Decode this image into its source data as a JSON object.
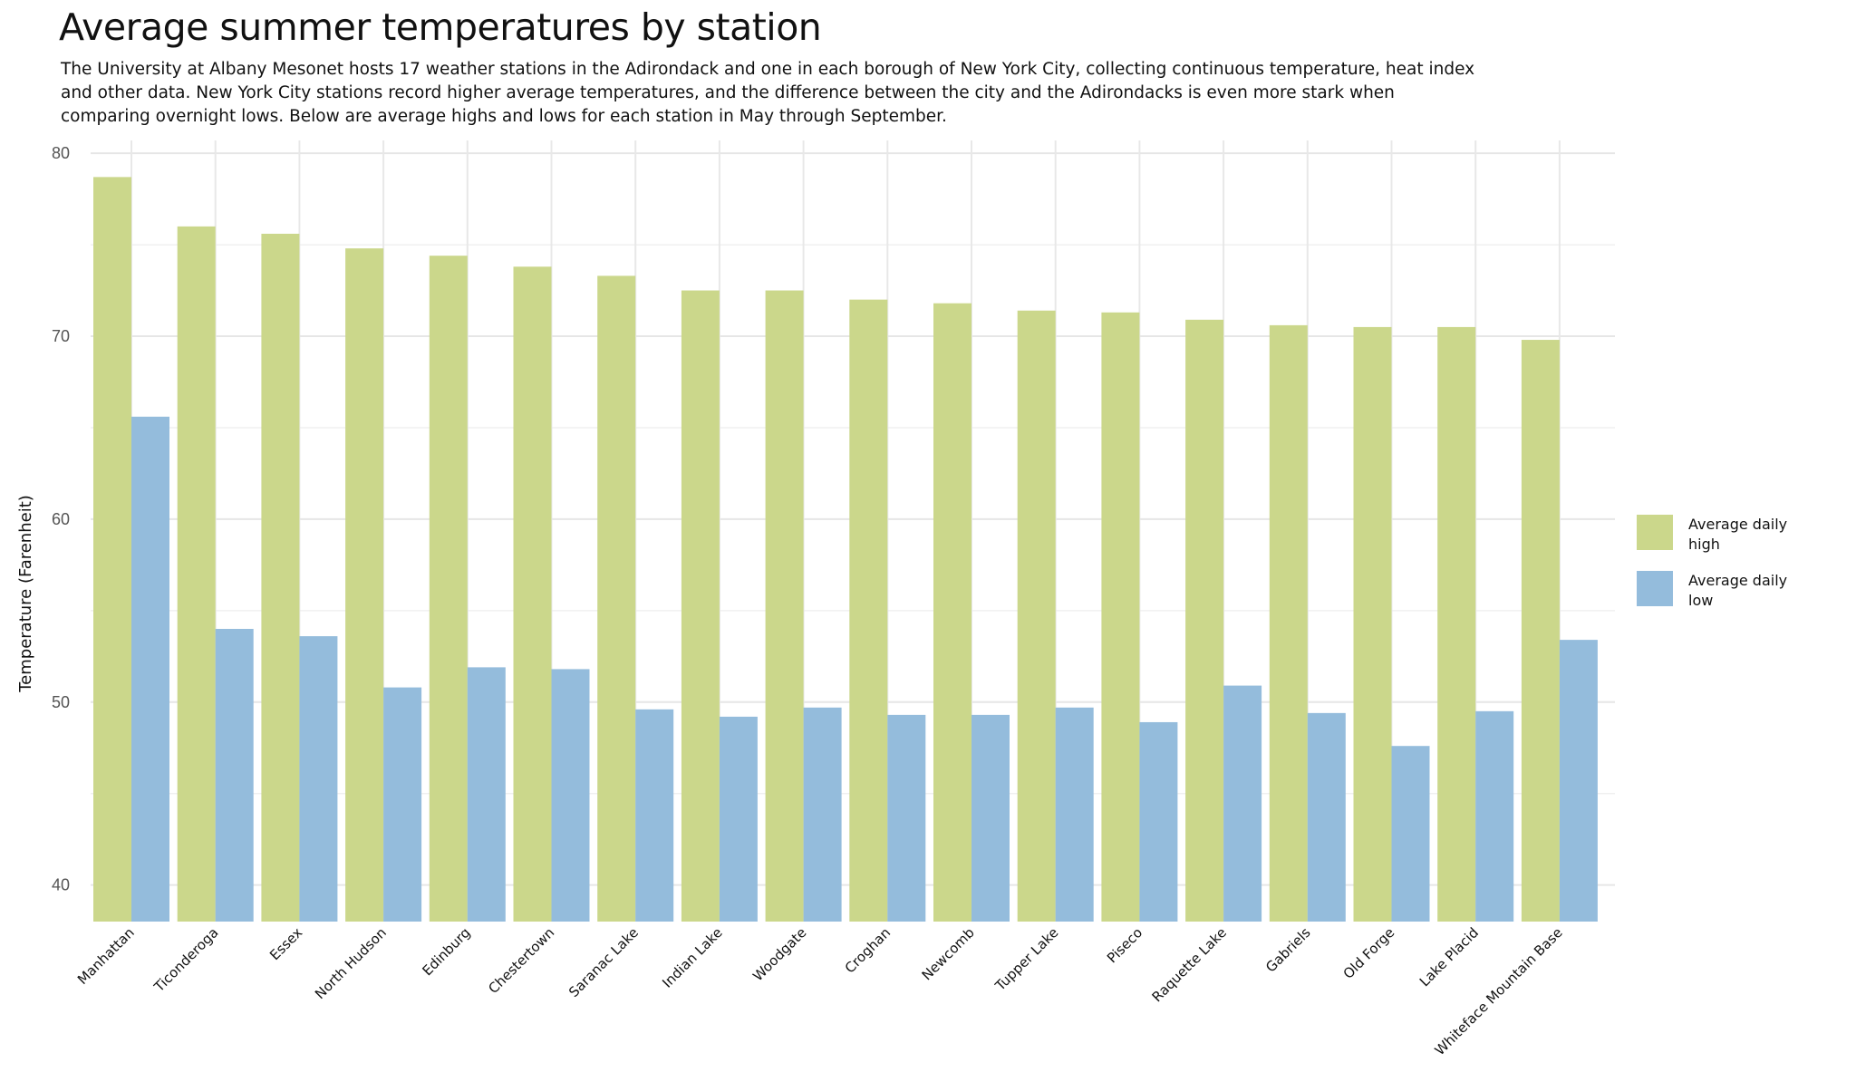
{
  "chart_data": {
    "type": "bar",
    "title": "Average summer temperatures by station",
    "subtitle": "The University at Albany Mesonet hosts 17 weather stations in the Adirondack and one in each borough of New York City, collecting continuous temperature, heat index and other data. New York City stations record higher average temperatures, and the difference between the city and the Adirondacks is even more stark when comparing overnight lows. Below are average highs and lows for each station in May through September.",
    "xlabel": "",
    "ylabel": "Temperature (Farenheit)",
    "ylim": [
      38,
      80.7
    ],
    "yticks": [
      40,
      50,
      60,
      70,
      80
    ],
    "grid": true,
    "legend_position": "right",
    "categories": [
      "Manhattan",
      "Ticonderoga",
      "Essex",
      "North Hudson",
      "Edinburg",
      "Chestertown",
      "Saranac Lake",
      "Indian Lake",
      "Woodgate",
      "Croghan",
      "Newcomb",
      "Tupper Lake",
      "Piseco",
      "Raquette Lake",
      "Gabriels",
      "Old Forge",
      "Lake Placid",
      "Whiteface Mountain Base"
    ],
    "series": [
      {
        "name": "Average daily high",
        "color": "#cbd78b",
        "values": [
          78.7,
          76.0,
          75.6,
          74.8,
          74.4,
          73.8,
          73.3,
          72.5,
          72.5,
          72.0,
          71.8,
          71.4,
          71.3,
          70.9,
          70.6,
          70.5,
          70.5,
          69.8
        ]
      },
      {
        "name": "Average daily low",
        "color": "#94bcdc",
        "values": [
          65.6,
          54.0,
          53.6,
          50.8,
          51.9,
          51.8,
          49.6,
          49.2,
          49.7,
          49.3,
          49.3,
          49.7,
          48.9,
          50.9,
          49.4,
          47.6,
          49.5,
          53.4
        ]
      }
    ],
    "legend": [
      {
        "line1": "Average daily",
        "line2": "high"
      },
      {
        "line1": "Average daily",
        "line2": "low"
      }
    ]
  }
}
